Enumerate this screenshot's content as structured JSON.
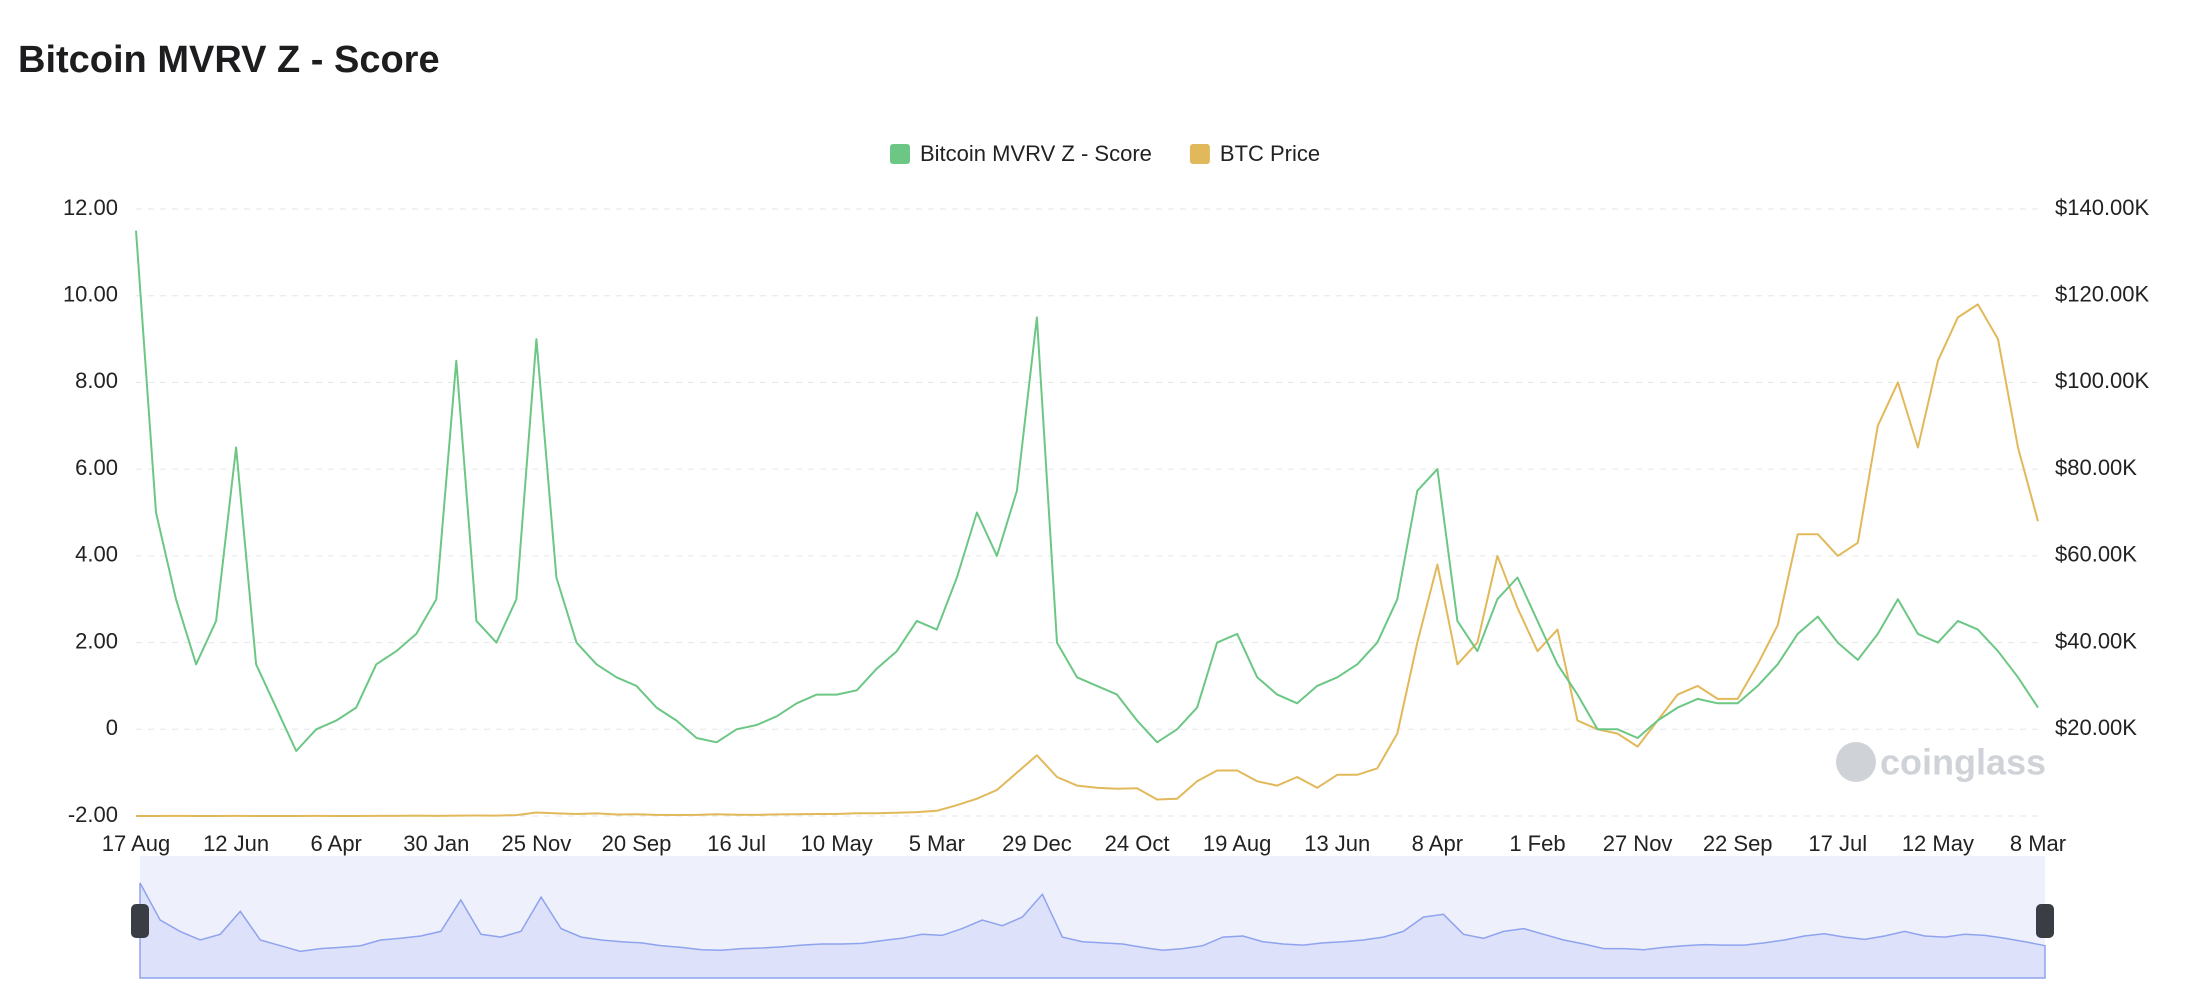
{
  "chart_data": {
    "type": "line",
    "title": "Bitcoin MVRV Z - Score",
    "watermark": "coinglass",
    "categories": [
      "17 Aug",
      null,
      null,
      null,
      null,
      "12 Jun",
      null,
      null,
      null,
      null,
      "6 Apr",
      null,
      null,
      null,
      null,
      "30 Jan",
      null,
      null,
      null,
      null,
      "25 Nov",
      null,
      null,
      null,
      null,
      "20 Sep",
      null,
      null,
      null,
      null,
      "16 Jul",
      null,
      null,
      null,
      null,
      "10 May",
      null,
      null,
      null,
      null,
      "5 Mar",
      null,
      null,
      null,
      null,
      "29 Dec",
      null,
      null,
      null,
      null,
      "24 Oct",
      null,
      null,
      null,
      null,
      "19 Aug",
      null,
      null,
      null,
      null,
      "13 Jun",
      null,
      null,
      null,
      null,
      "8 Apr",
      null,
      null,
      null,
      null,
      "1 Feb",
      null,
      null,
      null,
      null,
      "27 Nov",
      null,
      null,
      null,
      null,
      "22 Sep",
      null,
      null,
      null,
      null,
      "17 Jul",
      null,
      null,
      null,
      null,
      "12 May",
      null,
      null,
      null,
      null,
      "8 Mar"
    ],
    "series": [
      {
        "name": "Bitcoin MVRV Z - Score",
        "color": "#6cc785",
        "axis": "y",
        "values": [
          11.5,
          5.0,
          3.0,
          1.5,
          2.5,
          6.5,
          1.5,
          0.5,
          -0.5,
          0.0,
          0.2,
          0.5,
          1.5,
          1.8,
          2.2,
          3.0,
          8.5,
          2.5,
          2.0,
          3.0,
          9.0,
          3.5,
          2.0,
          1.5,
          1.2,
          1.0,
          0.5,
          0.2,
          -0.2,
          -0.3,
          0.0,
          0.1,
          0.3,
          0.6,
          0.8,
          0.8,
          0.9,
          1.4,
          1.8,
          2.5,
          2.3,
          3.5,
          5.0,
          4.0,
          5.5,
          9.5,
          2.0,
          1.2,
          1.0,
          0.8,
          0.2,
          -0.3,
          0.0,
          0.5,
          2.0,
          2.2,
          1.2,
          0.8,
          0.6,
          1.0,
          1.2,
          1.5,
          2.0,
          3.0,
          5.5,
          6.0,
          2.5,
          1.8,
          3.0,
          3.5,
          2.5,
          1.5,
          0.8,
          0.0,
          0.0,
          -0.2,
          0.2,
          0.5,
          0.7,
          0.6,
          0.6,
          1.0,
          1.5,
          2.2,
          2.6,
          2.0,
          1.6,
          2.2,
          3.0,
          2.2,
          2.0,
          2.5,
          2.3,
          1.8,
          1.2,
          0.5
        ]
      },
      {
        "name": "BTC Price",
        "color": "#e2b95a",
        "axis": "y2",
        "values": [
          0.07,
          0.3,
          15,
          5,
          3,
          18,
          3,
          5,
          10,
          13,
          5,
          7,
          12,
          20,
          100,
          20,
          100,
          120,
          100,
          200,
          800,
          600,
          450,
          600,
          350,
          400,
          250,
          230,
          250,
          400,
          280,
          250,
          380,
          420,
          450,
          450,
          650,
          620,
          750,
          900,
          1200,
          2500,
          4000,
          6000,
          10000,
          14000,
          9000,
          7000,
          6500,
          6300,
          6400,
          3800,
          4000,
          8000,
          10500,
          10500,
          8000,
          7000,
          9000,
          6500,
          9500,
          9500,
          11000,
          19000,
          40000,
          58000,
          35000,
          40000,
          60000,
          48000,
          38000,
          43000,
          22000,
          20000,
          19000,
          16000,
          22000,
          28000,
          30000,
          27000,
          27000,
          35000,
          44000,
          65000,
          65000,
          60000,
          63000,
          90000,
          100000,
          85000,
          105000,
          115000,
          118000,
          110000,
          85000,
          68000
        ]
      }
    ],
    "ylim": [
      -2,
      12
    ],
    "yticks": [
      {
        "value": -2,
        "label": "-2.00"
      },
      0,
      {
        "value": 2,
        "label": "2.00"
      },
      {
        "value": 4,
        "label": "4.00"
      },
      {
        "value": 6,
        "label": "6.00"
      },
      {
        "value": 8,
        "label": "8.00"
      },
      {
        "value": 10,
        "label": "10.00"
      },
      {
        "value": 12,
        "label": "12.00"
      }
    ],
    "y2lim": [
      0,
      140000
    ],
    "y2ticks": [
      {
        "value": 20000,
        "label": "$20.00K"
      },
      {
        "value": 40000,
        "label": "$40.00K"
      },
      {
        "value": 60000,
        "label": "$60.00K"
      },
      {
        "value": 80000,
        "label": "$80.00K"
      },
      {
        "value": 100000,
        "label": "$100.00K"
      },
      {
        "value": 120000,
        "label": "$120.00K"
      },
      {
        "value": 140000,
        "label": "$140.00K"
      }
    ],
    "grid": true,
    "legend": "top"
  }
}
